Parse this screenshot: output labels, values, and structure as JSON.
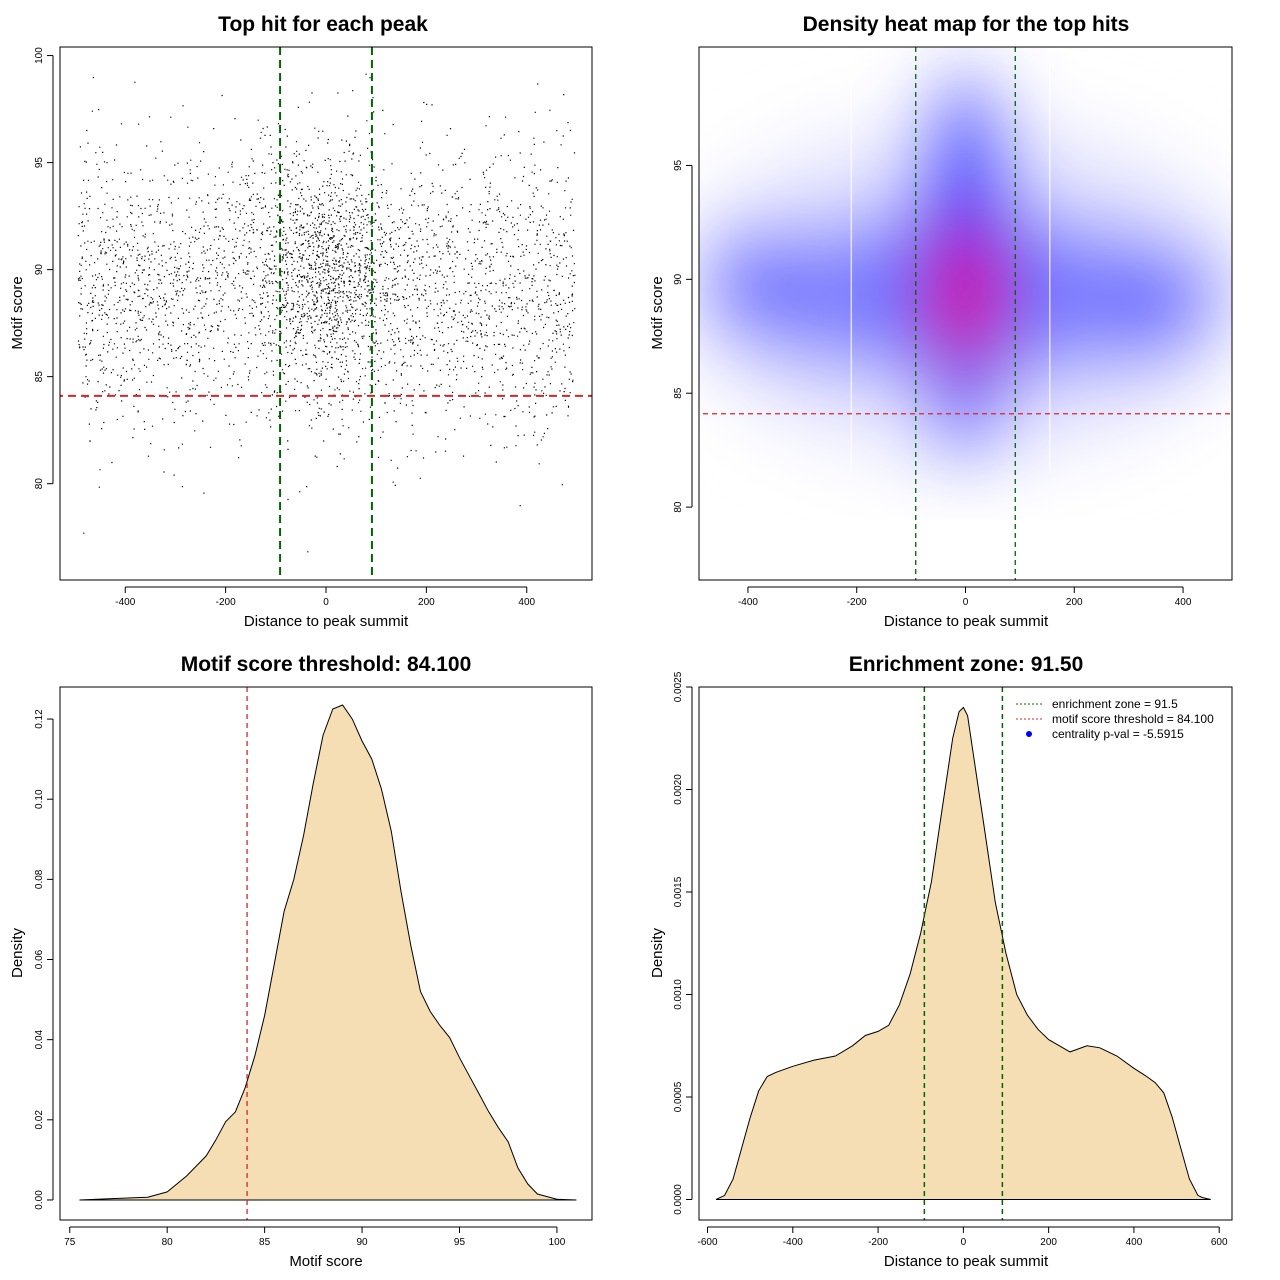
{
  "chart_data": [
    {
      "type": "scatter",
      "title": "Top hit for each peak",
      "xlabel": "Distance to peak summit",
      "ylabel": "Motif score",
      "xlim": [
        -530,
        530
      ],
      "ylim": [
        75.5,
        100.4
      ],
      "x_ticks": [
        -400,
        -200,
        0,
        200,
        400
      ],
      "y_ticks": [
        80,
        85,
        90,
        95,
        100
      ],
      "point_count": 9000,
      "distribution": {
        "x_range": [
          -495,
          495
        ],
        "central_cluster": {
          "x_mean": 0,
          "x_sd": 65,
          "y_mean": 89.8,
          "y_sd": 2.7
        },
        "background": {
          "y_mean": 89.2,
          "y_sd": 3.3
        },
        "outlier_y_range": [
          76.5,
          99.8
        ]
      },
      "vlines": [
        {
          "x": -91.5,
          "color": "#006400",
          "style": "dashed"
        },
        {
          "x": 91.5,
          "color": "#006400",
          "style": "dashed"
        }
      ],
      "hlines": [
        {
          "y": 84.1,
          "color": "#d62728",
          "style": "dashed"
        }
      ]
    },
    {
      "type": "heatmap",
      "title": "Density heat map for the top hits",
      "xlabel": "Distance to peak summit",
      "ylabel": "Motif score",
      "xlim": [
        -490,
        490
      ],
      "ylim": [
        76.8,
        100.2
      ],
      "x_ticks": [
        -400,
        -200,
        0,
        200,
        400
      ],
      "y_ticks": [
        80,
        85,
        90,
        95
      ],
      "colorscale": [
        "#ffffff",
        "#0000ff",
        "#ff0000"
      ],
      "density_peaks": [
        {
          "x": 0,
          "y": 89.3,
          "level": "high"
        },
        {
          "x": 0,
          "y": 90.5,
          "level": "medium"
        },
        {
          "x": 350,
          "y": 88.5,
          "level": "low"
        },
        {
          "x": -400,
          "y": 90,
          "level": "low"
        }
      ],
      "bin_borders_x": [
        -210,
        155
      ],
      "vlines": [
        {
          "x": -91.5,
          "color": "#006400",
          "style": "dashed"
        },
        {
          "x": 91.5,
          "color": "#006400",
          "style": "dashed"
        }
      ],
      "hlines": [
        {
          "y": 84.1,
          "color": "#d62728",
          "style": "dashed"
        }
      ]
    },
    {
      "type": "area",
      "title": "Motif score threshold: 84.100",
      "xlabel": "Motif score",
      "ylabel": "Density",
      "xlim": [
        74.5,
        101.8
      ],
      "ylim": [
        -0.005,
        0.128
      ],
      "x_ticks": [
        75,
        80,
        85,
        90,
        95,
        100
      ],
      "y_ticks": [
        0.0,
        0.02,
        0.04,
        0.06,
        0.08,
        0.1,
        0.12
      ],
      "y_tick_labels": [
        "0.00",
        "0.02",
        "0.04",
        "0.06",
        "0.08",
        "0.10",
        "0.12"
      ],
      "x": [
        75.5,
        77,
        79,
        80,
        81,
        82,
        82.5,
        83,
        83.5,
        84,
        84.5,
        85,
        85.5,
        86,
        86.5,
        87,
        87.5,
        88,
        88.5,
        89,
        89.5,
        90,
        90.5,
        91,
        91.5,
        92,
        92.5,
        93,
        93.5,
        94,
        94.5,
        95,
        95.5,
        96,
        96.5,
        97,
        97.5,
        98,
        98.5,
        99,
        100,
        101
      ],
      "values": [
        0.0,
        0.0003,
        0.0007,
        0.002,
        0.006,
        0.011,
        0.015,
        0.0195,
        0.022,
        0.028,
        0.036,
        0.046,
        0.059,
        0.072,
        0.08,
        0.091,
        0.104,
        0.116,
        0.1225,
        0.1235,
        0.12,
        0.1145,
        0.11,
        0.1025,
        0.092,
        0.077,
        0.0635,
        0.052,
        0.047,
        0.0435,
        0.0405,
        0.0355,
        0.031,
        0.0265,
        0.022,
        0.018,
        0.0145,
        0.008,
        0.004,
        0.0015,
        0.0002,
        0.0
      ],
      "fill_color": "#f5deb3",
      "vlines": [
        {
          "x": 84.1,
          "color": "#d62728",
          "style": "dashed"
        }
      ]
    },
    {
      "type": "area",
      "title": "Enrichment zone: 91.50",
      "xlabel": "Distance to peak summit",
      "ylabel": "Density",
      "xlim": [
        -620,
        630
      ],
      "ylim": [
        -0.0001,
        0.0025
      ],
      "x_ticks": [
        -600,
        -400,
        -200,
        0,
        200,
        400,
        600
      ],
      "y_ticks": [
        0.0,
        0.0005,
        0.001,
        0.0015,
        0.002,
        0.0025
      ],
      "y_tick_labels": [
        "0.0000",
        "0.0005",
        "0.0010",
        "0.0015",
        "0.0020",
        "0.0025"
      ],
      "x": [
        -580,
        -560,
        -540,
        -520,
        -500,
        -480,
        -460,
        -440,
        -400,
        -350,
        -300,
        -260,
        -230,
        -200,
        -175,
        -150,
        -125,
        -100,
        -75,
        -50,
        -25,
        -10,
        0,
        10,
        25,
        50,
        75,
        100,
        125,
        150,
        175,
        200,
        250,
        290,
        320,
        360,
        400,
        430,
        450,
        470,
        490,
        510,
        530,
        550,
        560,
        580
      ],
      "values": [
        0.0,
        2e-05,
        0.0001,
        0.00025,
        0.0004,
        0.00053,
        0.0006,
        0.00062,
        0.00065,
        0.00068,
        0.0007,
        0.00075,
        0.0008,
        0.00082,
        0.00085,
        0.00095,
        0.0011,
        0.0013,
        0.00155,
        0.0019,
        0.00225,
        0.00238,
        0.0024,
        0.00236,
        0.00215,
        0.0018,
        0.00145,
        0.0012,
        0.001,
        0.0009,
        0.00083,
        0.00078,
        0.00072,
        0.00075,
        0.00074,
        0.0007,
        0.00064,
        0.0006,
        0.00057,
        0.00052,
        0.0004,
        0.00025,
        0.0001,
        2e-05,
        1e-05,
        0.0
      ],
      "fill_color": "#f5deb3",
      "vlines": [
        {
          "x": -91.5,
          "color": "#006400",
          "style": "dashed"
        },
        {
          "x": 91.5,
          "color": "#006400",
          "style": "dashed"
        }
      ],
      "legend": {
        "position": "top-right",
        "entries": [
          {
            "label": "enrichment zone = 91.5",
            "color": "#006400",
            "kind": "dotted-line"
          },
          {
            "label": "motif score threshold = 84.100",
            "color": "#d62728",
            "kind": "dotted-line"
          },
          {
            "label": "centrality p-val = -5.5915",
            "color": "#0000ff",
            "kind": "point"
          }
        ]
      }
    }
  ]
}
